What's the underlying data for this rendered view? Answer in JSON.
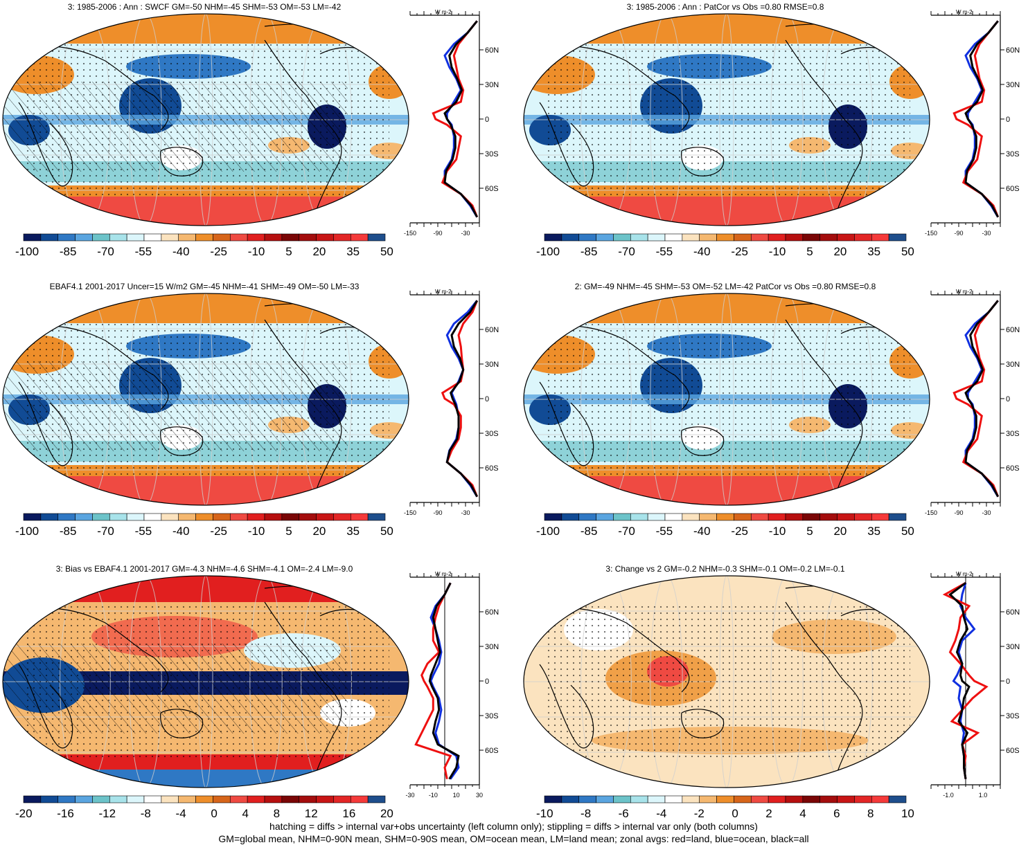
{
  "panels": [
    {
      "id": "p1",
      "title": "3: 1985-2006 : Ann : SWCF GM=-50 NHM=-45 SHM=-53 OM=-53 LM=-42",
      "palette": "abs",
      "hatch": true,
      "cbar_labels": [
        "-100",
        "-85",
        "-70",
        "-55",
        "-40",
        "-25",
        "-10",
        "5",
        "20",
        "35",
        "50"
      ],
      "zonal_ticks": [
        "-150",
        "-90",
        "-30"
      ],
      "zonal_lat_labels": [
        "60N",
        "30N",
        "0",
        "30S",
        "60S"
      ],
      "units": "W m-2"
    },
    {
      "id": "p2",
      "title": "3: 1985-2006 : Ann : PatCor vs Obs =0.80 RMSE=0.8",
      "palette": "abs",
      "hatch": false,
      "cbar_labels": [
        "-100",
        "-85",
        "-70",
        "-55",
        "-40",
        "-25",
        "-10",
        "5",
        "20",
        "35",
        "50"
      ],
      "zonal_ticks": [
        "-150",
        "-90",
        "-30"
      ],
      "zonal_lat_labels": [
        "60N",
        "30N",
        "0",
        "30S",
        "60S"
      ],
      "units": "W m-2"
    },
    {
      "id": "p3",
      "title": "EBAF4.1 2001-2017 Uncer=15 W/m2 GM=-45 NHM=-41 SHM=-49 OM=-50 LM=-33",
      "palette": "abs",
      "hatch": true,
      "cbar_labels": [
        "-100",
        "-85",
        "-70",
        "-55",
        "-40",
        "-25",
        "-10",
        "5",
        "20",
        "35",
        "50"
      ],
      "zonal_ticks": [
        "-150",
        "-90",
        "-30"
      ],
      "zonal_lat_labels": [
        "60N",
        "30N",
        "0",
        "30S",
        "60S"
      ],
      "units": "W m-2"
    },
    {
      "id": "p4",
      "title": "2: GM=-49 NHM=-45 SHM=-53 OM=-52 LM=-42 PatCor vs Obs =0.80 RMSE=0.8",
      "palette": "abs",
      "hatch": false,
      "cbar_labels": [
        "-100",
        "-85",
        "-70",
        "-55",
        "-40",
        "-25",
        "-10",
        "5",
        "20",
        "35",
        "50"
      ],
      "zonal_ticks": [
        "-150",
        "-90",
        "-30"
      ],
      "zonal_lat_labels": [
        "60N",
        "30N",
        "0",
        "30S",
        "60S"
      ],
      "units": "W m-2"
    },
    {
      "id": "p5",
      "title": "3: Bias vs EBAF4.1 2001-2017 GM=-4.3 NHM=-4.6 SHM=-4.1 OM=-2.4 LM=-9.0",
      "palette": "bias",
      "hatch": true,
      "cbar_labels": [
        "-20",
        "-16",
        "-12",
        "-8",
        "-4",
        "0",
        "4",
        "8",
        "12",
        "16",
        "20"
      ],
      "zonal_ticks": [
        "-30",
        "-10",
        "10",
        "30"
      ],
      "zonal_lat_labels": [
        "60N",
        "30N",
        "0",
        "30S",
        "60S"
      ],
      "units": "W m-2"
    },
    {
      "id": "p6",
      "title": "3: Change vs 2 GM=-0.2 NHM=-0.3 SHM=-0.1 OM=-0.2 LM=-0.1",
      "palette": "change",
      "hatch": false,
      "cbar_labels": [
        "-10",
        "-8",
        "-6",
        "-4",
        "-2",
        "0",
        "2",
        "4",
        "6",
        "8",
        "10"
      ],
      "zonal_ticks": [
        "-1.0",
        "1.0"
      ],
      "zonal_lat_labels": [
        "60N",
        "30N",
        "0",
        "30S",
        "60S"
      ],
      "units": "W m-2"
    }
  ],
  "footer": {
    "line1": "hatching = diffs > internal var+obs uncertainty (left column only); stippling = diffs > internal var only (both columns)",
    "line2": "GM=global mean, NHM=0-90N mean, SHM=0-90S mean, OM=ocean mean, LM=land mean; zonal avgs: red=land, blue=ocean, black=all"
  },
  "colors": {
    "abs": [
      "#0a1a5e",
      "#114b95",
      "#2f78c4",
      "#5aa5e0",
      "#6cc3c9",
      "#a8e3ea",
      "#dcf6fb",
      "#ffffff",
      "#fbe3bf",
      "#f5b870",
      "#ee8e2a",
      "#d7651a",
      "#ef4a42",
      "#e11f1f",
      "#b60f0f",
      "#7a0606",
      "#a40d0d",
      "#c81515",
      "#e32626",
      "#f53a3a",
      "#1e4e8c"
    ],
    "bias": [
      "#0a1a5e",
      "#114b95",
      "#2f78c4",
      "#5aa5e0",
      "#6cc3c9",
      "#a8e3ea",
      "#dcf6fb",
      "#ffffff",
      "#fbe3bf",
      "#f5b870",
      "#ee8e2a",
      "#d7651a",
      "#ef4a42",
      "#e11f1f",
      "#b60f0f",
      "#7a0606",
      "#a40d0d",
      "#c81515",
      "#e32626",
      "#f53a3a",
      "#1e4e8c"
    ],
    "change": [
      "#0a1a5e",
      "#114b95",
      "#2f78c4",
      "#5aa5e0",
      "#6cc3c9",
      "#a8e3ea",
      "#dcf6fb",
      "#ffffff",
      "#fbe3bf",
      "#f5b870",
      "#ee8e2a",
      "#d7651a",
      "#ef4a42",
      "#e11f1f",
      "#b60f0f",
      "#7a0606",
      "#a40d0d",
      "#c81515",
      "#e32626",
      "#f53a3a",
      "#1e4e8c"
    ]
  },
  "chart_data": [
    {
      "type": "heatmap",
      "title": "3: 1985-2006 : Ann : SWCF GM=-50 NHM=-45 SHM=-53 OM=-53 LM=-42",
      "units": "W m-2",
      "zonal_mean": {
        "lat": [
          85,
          75,
          65,
          55,
          45,
          35,
          25,
          15,
          5,
          0,
          -5,
          -15,
          -25,
          -35,
          -45,
          -55,
          -65,
          -75,
          -85
        ],
        "land": [
          -5,
          -25,
          -45,
          -55,
          -50,
          -45,
          -35,
          -40,
          -100,
          -95,
          -70,
          -40,
          -45,
          -50,
          -70,
          -80,
          -40,
          -15,
          -5
        ],
        "ocean": [
          -5,
          -25,
          -55,
          -75,
          -65,
          -50,
          -40,
          -55,
          -70,
          -70,
          -60,
          -55,
          -55,
          -60,
          -75,
          -75,
          -40,
          -20,
          -5
        ],
        "all": [
          -5,
          -25,
          -50,
          -65,
          -60,
          -48,
          -38,
          -50,
          -75,
          -70,
          -62,
          -52,
          -52,
          -58,
          -72,
          -75,
          -40,
          -18,
          -5
        ]
      },
      "xlim": [
        -150,
        0
      ]
    },
    {
      "type": "heatmap",
      "title": "3: 1985-2006 : Ann : PatCor vs Obs =0.80 RMSE=0.8",
      "units": "W m-2",
      "zonal_mean": {
        "lat": [
          85,
          75,
          65,
          55,
          45,
          35,
          25,
          15,
          5,
          0,
          -5,
          -15,
          -25,
          -35,
          -45,
          -55,
          -65,
          -75,
          -85
        ],
        "land": [
          -5,
          -25,
          -45,
          -55,
          -50,
          -45,
          -35,
          -40,
          -100,
          -95,
          -70,
          -40,
          -45,
          -50,
          -70,
          -80,
          -40,
          -15,
          -5
        ],
        "ocean": [
          -5,
          -25,
          -55,
          -75,
          -65,
          -50,
          -40,
          -55,
          -70,
          -70,
          -60,
          -55,
          -55,
          -60,
          -75,
          -75,
          -40,
          -20,
          -5
        ],
        "all": [
          -5,
          -25,
          -50,
          -65,
          -60,
          -48,
          -38,
          -50,
          -75,
          -70,
          -62,
          -52,
          -52,
          -58,
          -72,
          -75,
          -40,
          -18,
          -5
        ]
      },
      "xlim": [
        -150,
        0
      ]
    },
    {
      "type": "heatmap",
      "title": "EBAF4.1 2001-2017 Uncer=15 W/m2 GM=-45 NHM=-41 SHM=-49 OM=-50 LM=-33",
      "units": "W m-2",
      "zonal_mean": {
        "lat": [
          85,
          75,
          65,
          55,
          45,
          35,
          25,
          15,
          5,
          0,
          -5,
          -15,
          -25,
          -35,
          -45,
          -55,
          -65,
          -75,
          -85
        ],
        "land": [
          -5,
          -15,
          -35,
          -45,
          -40,
          -38,
          -35,
          -40,
          -80,
          -75,
          -55,
          -40,
          -40,
          -45,
          -60,
          -70,
          -40,
          -15,
          -5
        ],
        "ocean": [
          -5,
          -25,
          -55,
          -70,
          -60,
          -45,
          -35,
          -45,
          -60,
          -55,
          -50,
          -45,
          -45,
          -50,
          -65,
          -70,
          -40,
          -20,
          -5
        ],
        "all": [
          -5,
          -20,
          -45,
          -60,
          -55,
          -42,
          -35,
          -43,
          -62,
          -58,
          -52,
          -45,
          -45,
          -48,
          -64,
          -70,
          -40,
          -18,
          -5
        ]
      },
      "xlim": [
        -150,
        0
      ]
    },
    {
      "type": "heatmap",
      "title": "2: GM=-49 NHM=-45 SHM=-53 OM=-52 LM=-42 PatCor vs Obs =0.80 RMSE=0.8",
      "units": "W m-2",
      "zonal_mean": {
        "lat": [
          85,
          75,
          65,
          55,
          45,
          35,
          25,
          15,
          5,
          0,
          -5,
          -15,
          -25,
          -35,
          -45,
          -55,
          -65,
          -75,
          -85
        ],
        "land": [
          -5,
          -25,
          -45,
          -55,
          -50,
          -45,
          -35,
          -40,
          -100,
          -95,
          -70,
          -40,
          -45,
          -50,
          -70,
          -80,
          -40,
          -15,
          -5
        ],
        "ocean": [
          -5,
          -25,
          -55,
          -75,
          -65,
          -50,
          -40,
          -55,
          -70,
          -70,
          -60,
          -55,
          -55,
          -60,
          -75,
          -75,
          -40,
          -20,
          -5
        ],
        "all": [
          -5,
          -25,
          -50,
          -65,
          -60,
          -48,
          -38,
          -50,
          -75,
          -70,
          -62,
          -52,
          -52,
          -58,
          -72,
          -75,
          -40,
          -18,
          -5
        ]
      },
      "xlim": [
        -150,
        0
      ]
    },
    {
      "type": "heatmap",
      "title": "3: Bias vs EBAF4.1 2001-2017 GM=-4.3 NHM=-4.6 SHM=-4.1 OM=-2.4 LM=-9.0",
      "units": "W m-2",
      "zonal_mean": {
        "lat": [
          85,
          75,
          65,
          55,
          45,
          35,
          25,
          15,
          5,
          0,
          -5,
          -15,
          -25,
          -35,
          -45,
          -55,
          -65,
          -75,
          -85
        ],
        "land": [
          5,
          0,
          -5,
          -8,
          -10,
          -10,
          -5,
          -15,
          -20,
          -18,
          -15,
          -10,
          -10,
          -15,
          -20,
          -25,
          5,
          0,
          2
        ],
        "ocean": [
          5,
          0,
          -8,
          -12,
          -8,
          -5,
          -3,
          -5,
          -10,
          -12,
          -10,
          -5,
          -3,
          -5,
          -8,
          -5,
          10,
          12,
          5
        ],
        "all": [
          5,
          0,
          -7,
          -10,
          -8,
          -6,
          -4,
          -8,
          -12,
          -13,
          -11,
          -6,
          -5,
          -8,
          -10,
          -6,
          12,
          10,
          4
        ]
      },
      "xlim": [
        -30,
        30
      ]
    },
    {
      "type": "heatmap",
      "title": "3: Change vs 2 GM=-0.2 NHM=-0.3 SHM=-0.1 OM=-0.2 LM=-0.1",
      "units": "W m-2",
      "zonal_mean": {
        "lat": [
          85,
          75,
          65,
          55,
          45,
          35,
          25,
          15,
          5,
          0,
          -5,
          -15,
          -25,
          -35,
          -45,
          -55,
          -65,
          -75,
          -85
        ],
        "land": [
          0.0,
          -1.2,
          0.2,
          -0.3,
          -0.4,
          -0.6,
          -0.9,
          -0.3,
          0.2,
          0.5,
          1.2,
          0.4,
          -0.2,
          -0.8,
          0.7,
          -0.2,
          0.0,
          -0.1,
          0.0
        ],
        "ocean": [
          0.0,
          -0.2,
          -0.3,
          0.0,
          0.5,
          -0.2,
          -0.4,
          -0.2,
          -0.5,
          -0.7,
          -0.3,
          -0.4,
          -0.2,
          -0.3,
          -0.1,
          -0.2,
          -0.1,
          -0.1,
          0.0
        ],
        "all": [
          0.0,
          -0.9,
          -0.2,
          -0.1,
          0.1,
          -0.3,
          -0.5,
          -0.2,
          -0.3,
          -0.2,
          0.2,
          -0.1,
          -0.2,
          -0.4,
          0.1,
          -0.2,
          -0.1,
          -0.1,
          0.0
        ]
      },
      "xlim": [
        -2,
        2
      ]
    }
  ]
}
